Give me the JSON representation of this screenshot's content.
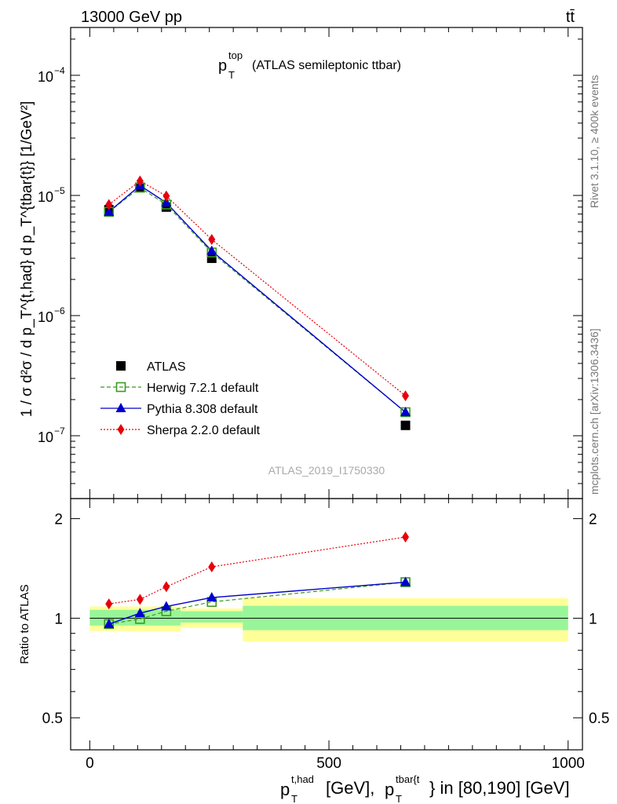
{
  "header": {
    "left": "13000 GeV pp",
    "right": "tt̄"
  },
  "side_labels": {
    "rivet": "Rivet 3.1.10, ≥ 400k events",
    "mcplots": "mcplots.cern.ch [arXiv:1306.3436]"
  },
  "watermark": "ATLAS_2019_I1750330",
  "colors": {
    "atlas": "#000000",
    "herwig": "#3a9a1f",
    "pythia": "#0000cc",
    "sherpa": "#e8000b",
    "band_inner": "#99f599",
    "band_outer": "#ffff99"
  },
  "chart_data": [
    {
      "type": "scatter",
      "panel": "main",
      "title_main": "p",
      "title_sub": "T",
      "title_sup": "top",
      "title_rest": "(ATLAS semileptonic ttbar)",
      "ylabel": "1 / σ d²σ / d p_T^{t,had} d p_T^{tbar{t}} [1/GeV²]",
      "yscale": "log",
      "ylim": [
        3e-08,
        0.00025
      ],
      "xlim": [
        -40,
        1030
      ],
      "y_ticks": [
        {
          "base": "10",
          "exp": "−4"
        },
        {
          "base": "10",
          "exp": "−5"
        },
        {
          "base": "10",
          "exp": "−6"
        },
        {
          "base": "10",
          "exp": "−7"
        }
      ],
      "x": [
        40,
        105,
        160,
        255,
        660
      ],
      "series": [
        {
          "name": "ATLAS",
          "key": "atlas",
          "marker": "square-filled",
          "values": [
            7.6e-06,
            1.17e-05,
            8e-06,
            3e-06,
            1.22e-07
          ]
        },
        {
          "name": "Herwig 7.2.1 default",
          "key": "herwig",
          "marker": "square-open",
          "line": "dashed",
          "values": [
            7.3e-06,
            1.16e-05,
            8.4e-06,
            3.35e-06,
            1.57e-07
          ]
        },
        {
          "name": "Pythia 8.308 default",
          "key": "pythia",
          "marker": "triangle",
          "line": "solid",
          "values": [
            7.3e-06,
            1.21e-05,
            8.7e-06,
            3.45e-06,
            1.57e-07
          ]
        },
        {
          "name": "Sherpa 2.2.0 default",
          "key": "sherpa",
          "marker": "diamond",
          "line": "dotted",
          "values": [
            8.4e-06,
            1.32e-05,
            9.9e-06,
            4.3e-06,
            2.15e-07
          ]
        }
      ]
    },
    {
      "type": "scatter",
      "panel": "ratio",
      "ylabel": "Ratio to ATLAS",
      "yscale": "log",
      "ylim": [
        0.4,
        2.3
      ],
      "xlim": [
        -40,
        1030
      ],
      "y_ticks": [
        "2",
        "1",
        "0.5"
      ],
      "x_ticks": [
        "0",
        "500",
        "1000"
      ],
      "xlabel_parts": {
        "p": "p",
        "T": "T",
        "thad": "t,had",
        "mid": "[GeV], ",
        "tbar": "tbar{t",
        "tail": "} in [80,190] [GeV]"
      },
      "bands": [
        {
          "x": [
            0,
            80
          ],
          "inner": [
            0.95,
            1.06
          ],
          "outer": [
            0.915,
            1.085
          ]
        },
        {
          "x": [
            80,
            190
          ],
          "inner": [
            0.95,
            1.06
          ],
          "outer": [
            0.91,
            1.085
          ]
        },
        {
          "x": [
            190,
            320
          ],
          "inner": [
            0.97,
            1.05
          ],
          "outer": [
            0.935,
            1.07
          ]
        },
        {
          "x": [
            320,
            1000
          ],
          "inner": [
            0.92,
            1.09
          ],
          "outer": [
            0.85,
            1.15
          ]
        }
      ],
      "x": [
        40,
        105,
        160,
        255,
        660
      ],
      "series": [
        {
          "name": "Herwig 7.2.1 default",
          "key": "herwig",
          "marker": "square-open",
          "line": "dashed",
          "values": [
            0.96,
            0.995,
            1.05,
            1.12,
            1.285
          ]
        },
        {
          "name": "Pythia 8.308 default",
          "key": "pythia",
          "marker": "triangle",
          "line": "solid",
          "values": [
            0.96,
            1.035,
            1.085,
            1.155,
            1.285
          ]
        },
        {
          "name": "Sherpa 2.2.0 default",
          "key": "sherpa",
          "marker": "diamond",
          "line": "dotted",
          "values": [
            1.105,
            1.14,
            1.245,
            1.43,
            1.76
          ]
        }
      ]
    }
  ]
}
